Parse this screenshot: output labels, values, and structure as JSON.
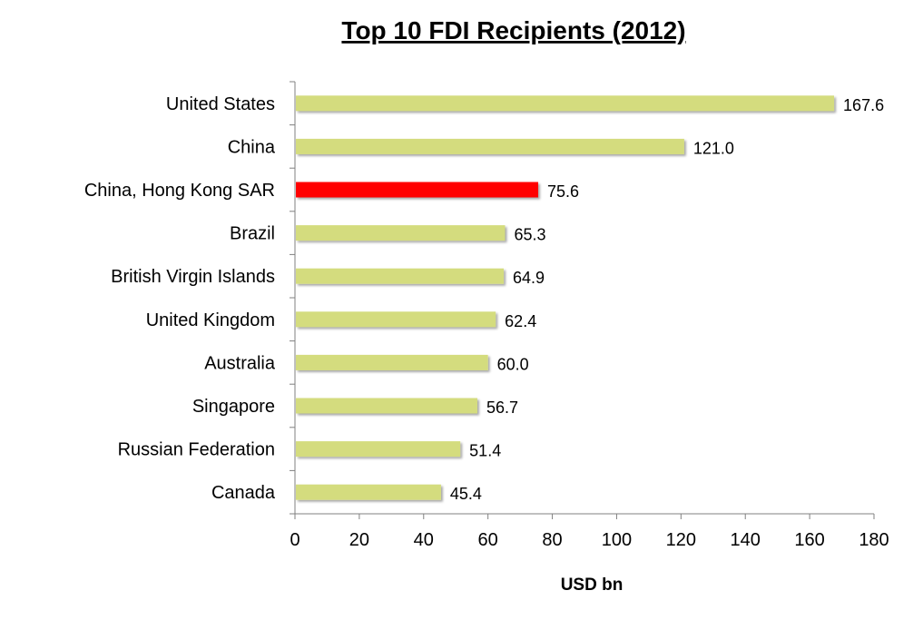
{
  "chart_data": {
    "type": "bar",
    "orientation": "horizontal",
    "title": "Top 10 FDI Recipients (2012)",
    "xlabel": "USD bn",
    "ylabel": "",
    "xlim": [
      0,
      180
    ],
    "x_ticks": [
      0,
      20,
      40,
      60,
      80,
      100,
      120,
      140,
      160,
      180
    ],
    "categories": [
      "United States",
      "China",
      "China, Hong Kong SAR",
      "Brazil",
      "British Virgin Islands",
      "United Kingdom",
      "Australia",
      "Singapore",
      "Russian Federation",
      "Canada"
    ],
    "values": [
      167.6,
      121.0,
      75.6,
      65.3,
      64.9,
      62.4,
      60.0,
      56.7,
      51.4,
      45.4
    ],
    "value_labels": [
      "167.6",
      "121.0",
      "75.6",
      "65.3",
      "64.9",
      "62.4",
      "60.0",
      "56.7",
      "51.4",
      "45.4"
    ],
    "grid": false,
    "legend": "none",
    "colors": {
      "bar": "#d4dc7e",
      "highlight": "#ff0000",
      "highlight_index": 2,
      "axis": "#808080"
    }
  }
}
